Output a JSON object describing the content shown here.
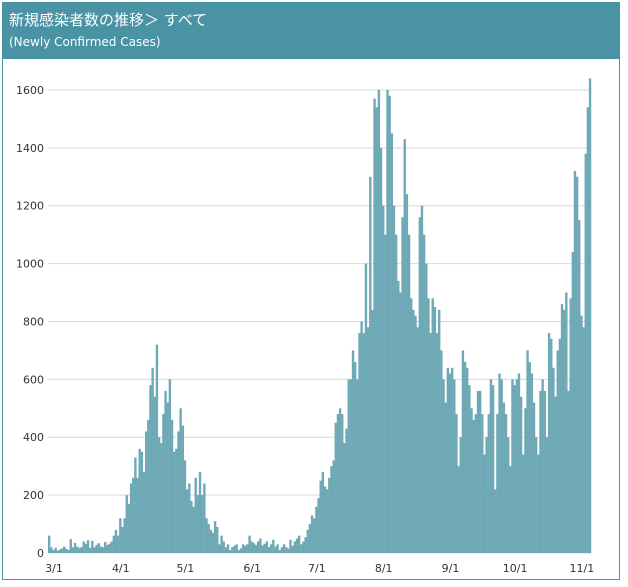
{
  "header": {
    "title": "新規感染者数の推移＞ すべて",
    "subtitle": "(Newly Confirmed Cases)"
  },
  "colors": {
    "header_bg": "#4a93a4",
    "bar": "#6fa9b6",
    "grid": "#d9d9d9"
  },
  "chart_data": {
    "type": "bar",
    "title": "新規感染者数の推移＞ すべて",
    "subtitle": "(Newly Confirmed Cases)",
    "xlabel": "",
    "ylabel": "",
    "ylim": [
      0,
      1700
    ],
    "y_ticks": [
      0,
      200,
      400,
      600,
      800,
      1000,
      1200,
      1400,
      1600
    ],
    "x_tick_labels": [
      "3/1",
      "4/1",
      "5/1",
      "6/1",
      "7/1",
      "8/1",
      "9/1",
      "10/1",
      "11/1"
    ],
    "x_tick_day_index": [
      0,
      31,
      61,
      92,
      122,
      153,
      184,
      214,
      245
    ],
    "grid": true,
    "legend": "none",
    "start_label": "3/1",
    "values": [
      60,
      20,
      10,
      18,
      8,
      12,
      16,
      22,
      14,
      10,
      48,
      20,
      35,
      22,
      18,
      20,
      40,
      32,
      44,
      18,
      42,
      20,
      28,
      34,
      22,
      20,
      38,
      28,
      32,
      40,
      60,
      80,
      60,
      120,
      90,
      120,
      200,
      170,
      240,
      260,
      330,
      260,
      360,
      350,
      280,
      420,
      460,
      580,
      640,
      540,
      720,
      400,
      380,
      480,
      560,
      520,
      600,
      460,
      350,
      360,
      420,
      500,
      440,
      320,
      220,
      240,
      180,
      160,
      260,
      200,
      280,
      200,
      240,
      120,
      100,
      80,
      70,
      110,
      90,
      30,
      60,
      40,
      20,
      30,
      10,
      20,
      25,
      30,
      10,
      16,
      30,
      25,
      30,
      60,
      40,
      34,
      28,
      40,
      50,
      26,
      32,
      40,
      20,
      30,
      46,
      22,
      30,
      10,
      20,
      30,
      20,
      15,
      46,
      25,
      40,
      50,
      60,
      30,
      40,
      55,
      80,
      100,
      130,
      120,
      160,
      190,
      250,
      280,
      230,
      220,
      260,
      300,
      320,
      450,
      480,
      500,
      480,
      380,
      430,
      600,
      600,
      700,
      660,
      600,
      760,
      800,
      760,
      1000,
      780,
      1300,
      840,
      1570,
      1540,
      1600,
      1400,
      1200,
      1100,
      1600,
      1580,
      1450,
      1200,
      1100,
      940,
      900,
      1160,
      1430,
      1240,
      1100,
      880,
      840,
      820,
      780,
      1160,
      1200,
      1100,
      1000,
      880,
      760,
      880,
      850,
      760,
      840,
      700,
      600,
      520,
      640,
      620,
      640,
      600,
      480,
      300,
      400,
      700,
      660,
      640,
      580,
      500,
      460,
      480,
      560,
      560,
      480,
      340,
      400,
      480,
      600,
      580,
      220,
      480,
      620,
      600,
      520,
      480,
      400,
      300,
      600,
      580,
      600,
      620,
      540,
      340,
      500,
      700,
      660,
      620,
      520,
      400,
      340,
      560,
      600,
      560,
      400,
      760,
      740,
      640,
      540,
      700,
      740,
      860,
      840,
      900,
      560,
      880,
      1040,
      1320,
      1300,
      1150,
      820,
      780,
      1380,
      1540,
      1640
    ]
  }
}
